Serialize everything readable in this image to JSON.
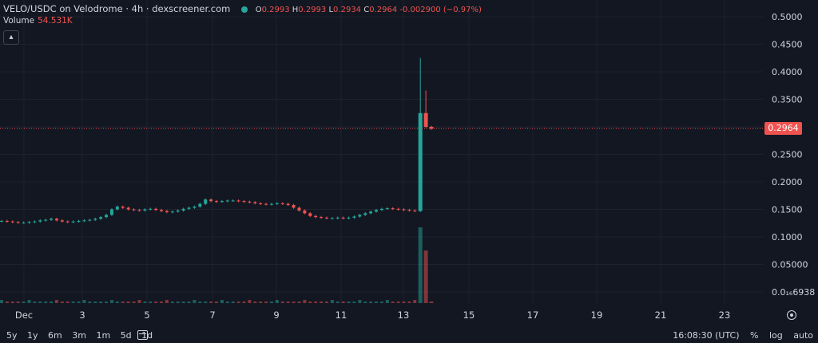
{
  "legend": {
    "title": "VELO/USDC on Velodrome · 4h · dexscreener.com",
    "o_label": "O",
    "o_value": "0.2993",
    "h_label": "H",
    "h_value": "0.2993",
    "l_label": "L",
    "l_value": "0.2934",
    "c_label": "C",
    "c_value": "0.2964",
    "change": "-0.002900 (−0.97%)"
  },
  "volume": {
    "label": "Volume",
    "value": "54.531K"
  },
  "collapse_icon": "chevron-up-icon",
  "current_price": "0.2964",
  "colors": {
    "up": "#26a69a",
    "down": "#ef5350",
    "background": "#131722",
    "grid": "#1e222d"
  },
  "chart_data": {
    "type": "candlestick",
    "y_axis_ticks": [
      "0.5000",
      "0.4500",
      "0.4000",
      "0.3500",
      "0.3000",
      "0.2500",
      "0.2000",
      "0.1500",
      "0.1000",
      "0.05000",
      "0.0₁₆6938"
    ],
    "ylim": [
      0,
      0.5
    ],
    "x_axis_ticks": [
      "Dec",
      "3",
      "5",
      "7",
      "9",
      "11",
      "13",
      "15",
      "17",
      "19",
      "21",
      "23"
    ],
    "last_price": 0.2964,
    "price_path": [
      0.129,
      0.128,
      0.127,
      0.126,
      0.126,
      0.127,
      0.128,
      0.13,
      0.131,
      0.133,
      0.13,
      0.128,
      0.127,
      0.128,
      0.129,
      0.13,
      0.131,
      0.133,
      0.136,
      0.14,
      0.15,
      0.155,
      0.153,
      0.15,
      0.149,
      0.148,
      0.15,
      0.151,
      0.149,
      0.147,
      0.145,
      0.146,
      0.148,
      0.151,
      0.153,
      0.155,
      0.16,
      0.168,
      0.165,
      0.164,
      0.165,
      0.166,
      0.166,
      0.165,
      0.164,
      0.163,
      0.161,
      0.16,
      0.159,
      0.16,
      0.161,
      0.16,
      0.158,
      0.153,
      0.148,
      0.143,
      0.138,
      0.136,
      0.135,
      0.134,
      0.134,
      0.135,
      0.134,
      0.135,
      0.137,
      0.14,
      0.143,
      0.146,
      0.149,
      0.151,
      0.152,
      0.151,
      0.15,
      0.149,
      0.148,
      0.147,
      0.325,
      0.3,
      0.2964
    ]
  },
  "timeframes": [
    "5y",
    "1y",
    "6m",
    "3m",
    "1m",
    "5d",
    "1d"
  ],
  "calendar_icon": "calendar-icon",
  "clock": "16:08:30 (UTC)",
  "scale_options": [
    "%",
    "log",
    "auto"
  ],
  "settings_icon": "gear-icon"
}
